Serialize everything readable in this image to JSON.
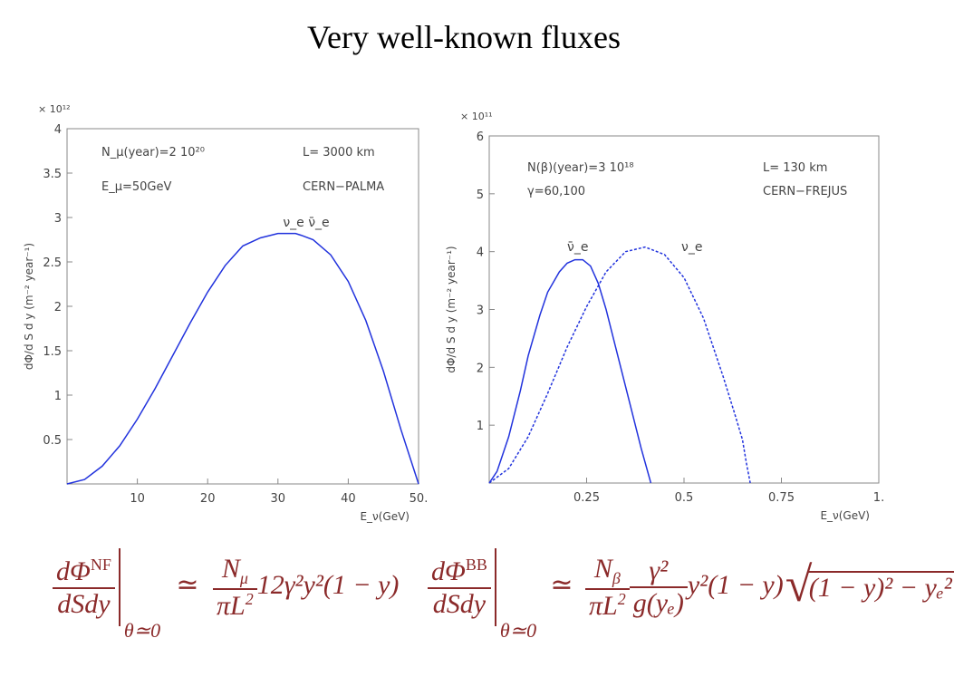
{
  "title": "Very well-known fluxes",
  "chart_data": [
    {
      "type": "line",
      "xlabel": "E_ν(GeV)",
      "ylabel": "dΦ/d S d y (m⁻² year⁻¹)",
      "y_multiplier": "× 10¹²",
      "xlim": [
        0,
        50
      ],
      "ylim": [
        0,
        4
      ],
      "x_ticks": [
        {
          "v": 10,
          "t": "10"
        },
        {
          "v": 20,
          "t": "20"
        },
        {
          "v": 30,
          "t": "30"
        },
        {
          "v": 40,
          "t": "40"
        },
        {
          "v": 50,
          "t": "50."
        }
      ],
      "y_ticks": [
        {
          "v": 0.5,
          "t": "0.5"
        },
        {
          "v": 1,
          "t": "1"
        },
        {
          "v": 1.5,
          "t": "1.5"
        },
        {
          "v": 2,
          "t": "2"
        },
        {
          "v": 2.5,
          "t": "2.5"
        },
        {
          "v": 3,
          "t": "3"
        },
        {
          "v": 3.5,
          "t": "3.5"
        },
        {
          "v": 4,
          "t": "4"
        }
      ],
      "annotations": [
        "N_μ(year)=2 10²⁰",
        "E_μ=50GeV",
        "L= 3000 km",
        "CERN−PALMA"
      ],
      "curve_labels": [
        "ν_e  ν̄_e"
      ],
      "series": [
        {
          "style": "solid",
          "color": "#2233dd",
          "x": [
            0,
            2.5,
            5,
            7.5,
            10,
            12.5,
            15,
            17.5,
            20,
            22.5,
            25,
            27.5,
            30,
            32.5,
            33.3,
            35,
            37.5,
            40,
            42.5,
            45,
            47.5,
            50
          ],
          "y": [
            0,
            0.05,
            0.2,
            0.43,
            0.73,
            1.07,
            1.44,
            1.81,
            2.16,
            2.46,
            2.68,
            2.77,
            2.82,
            2.82,
            2.8,
            2.75,
            2.58,
            2.28,
            1.84,
            1.27,
            0.61,
            0
          ]
        }
      ]
    },
    {
      "type": "line",
      "xlabel": "E_ν(GeV)",
      "ylabel": "dΦ/d S d y (m⁻² year⁻¹)",
      "y_multiplier": "× 10¹¹",
      "xlim": [
        0,
        1
      ],
      "ylim": [
        0,
        6
      ],
      "x_ticks": [
        {
          "v": 0.25,
          "t": "0.25"
        },
        {
          "v": 0.5,
          "t": "0.5"
        },
        {
          "v": 0.75,
          "t": "0.75"
        },
        {
          "v": 1,
          "t": "1."
        }
      ],
      "y_ticks": [
        {
          "v": 1,
          "t": "1"
        },
        {
          "v": 2,
          "t": "2"
        },
        {
          "v": 3,
          "t": "3"
        },
        {
          "v": 4,
          "t": "4"
        },
        {
          "v": 5,
          "t": "5"
        },
        {
          "v": 6,
          "t": "6"
        }
      ],
      "annotations": [
        "N(β)(year)=3 10¹⁸",
        "γ=60,100",
        "L= 130 km",
        "CERN−FREJUS"
      ],
      "series": [
        {
          "name": "ν̄_e",
          "style": "solid",
          "color": "#2233dd",
          "x": [
            0,
            0.02,
            0.05,
            0.08,
            0.1,
            0.13,
            0.15,
            0.18,
            0.2,
            0.22,
            0.24,
            0.26,
            0.28,
            0.3,
            0.33,
            0.36,
            0.39,
            0.415
          ],
          "y": [
            0,
            0.2,
            0.8,
            1.6,
            2.2,
            2.9,
            3.3,
            3.65,
            3.8,
            3.86,
            3.86,
            3.75,
            3.45,
            3.0,
            2.2,
            1.4,
            0.6,
            0
          ]
        },
        {
          "name": "ν_e",
          "style": "dotted",
          "color": "#2233dd",
          "x": [
            0,
            0.05,
            0.1,
            0.15,
            0.2,
            0.25,
            0.3,
            0.35,
            0.4,
            0.45,
            0.5,
            0.55,
            0.6,
            0.63,
            0.65,
            0.66,
            0.67
          ],
          "y": [
            0,
            0.25,
            0.8,
            1.55,
            2.35,
            3.05,
            3.65,
            4.0,
            4.08,
            3.95,
            3.55,
            2.85,
            1.85,
            1.2,
            0.75,
            0.35,
            0
          ]
        }
      ]
    }
  ],
  "formulas": {
    "left": {
      "num": "dΦ",
      "num_sup": "NF",
      "den": "dSdy",
      "eval": "θ≃0",
      "rel": "≃",
      "coef_num": "N",
      "coef_num_sub": "μ",
      "coef_den": "πL",
      "coef_den_sup": "2",
      "tail": "12γ²y²(1 − y)"
    },
    "right": {
      "num": "dΦ",
      "num_sup": "BB",
      "den": "dSdy",
      "eval": "θ≃0",
      "rel": "≃",
      "coef_num": "N",
      "coef_num_sub": "β",
      "coef_den": "πL",
      "coef_den_sup": "2",
      "g_num": "γ²",
      "g_den": "g(yₑ)",
      "tail": "y²(1 − y)",
      "sqrt": "(1 − y)² − yₑ²"
    }
  }
}
